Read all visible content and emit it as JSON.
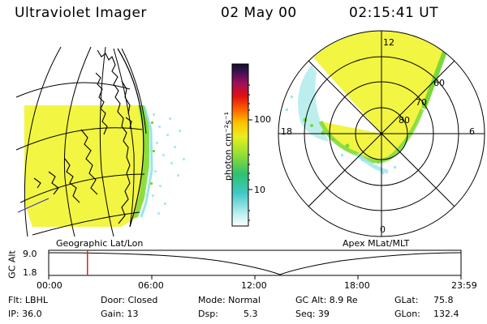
{
  "header": {
    "instrument": "Ultraviolet Imager",
    "date": "02 May 00",
    "time": "02:15:41 UT"
  },
  "map_labels": {
    "geographic": "Geographic Lat/Lon",
    "apex": "Apex MLat/MLT"
  },
  "colorbar": {
    "unit_label": "photon cm⁻²s⁻¹",
    "ticks": [
      "100",
      "10"
    ]
  },
  "polar_plot": {
    "mlt_labels": {
      "top": "12",
      "left": "18",
      "right": "6",
      "bottom": "0"
    },
    "lat_labels": [
      "60",
      "70",
      "80"
    ]
  },
  "altitude_plot": {
    "y_label": "GC Alt",
    "y_ticks": [
      "9.0",
      "1.8"
    ],
    "x_ticks": [
      "00:00",
      "06:00",
      "12:00",
      "18:00",
      "23:59"
    ],
    "current_time_fraction": 0.094
  },
  "info": {
    "filter_label": "Flt: LBHL",
    "ip_label": "IP: 36.0",
    "door_label": "Door: Closed",
    "gain_label": "Gain: 13",
    "mode_label": "Mode: Normal",
    "dsp_label": "Dsp:",
    "dsp_value": "5.3",
    "gc_alt_label": "GC Alt: 8.9 Re",
    "seq_label": "Seq: 39",
    "glat_label": "GLat:",
    "glat_value": "75.8",
    "glon_label": "GLon:",
    "glon_value": "132.4"
  },
  "colors": {
    "aurora_yellow": "#f2f542",
    "aurora_green": "#7bd83a",
    "aurora_cyan": "#7ee0e0",
    "marker_red": "#e02020"
  }
}
